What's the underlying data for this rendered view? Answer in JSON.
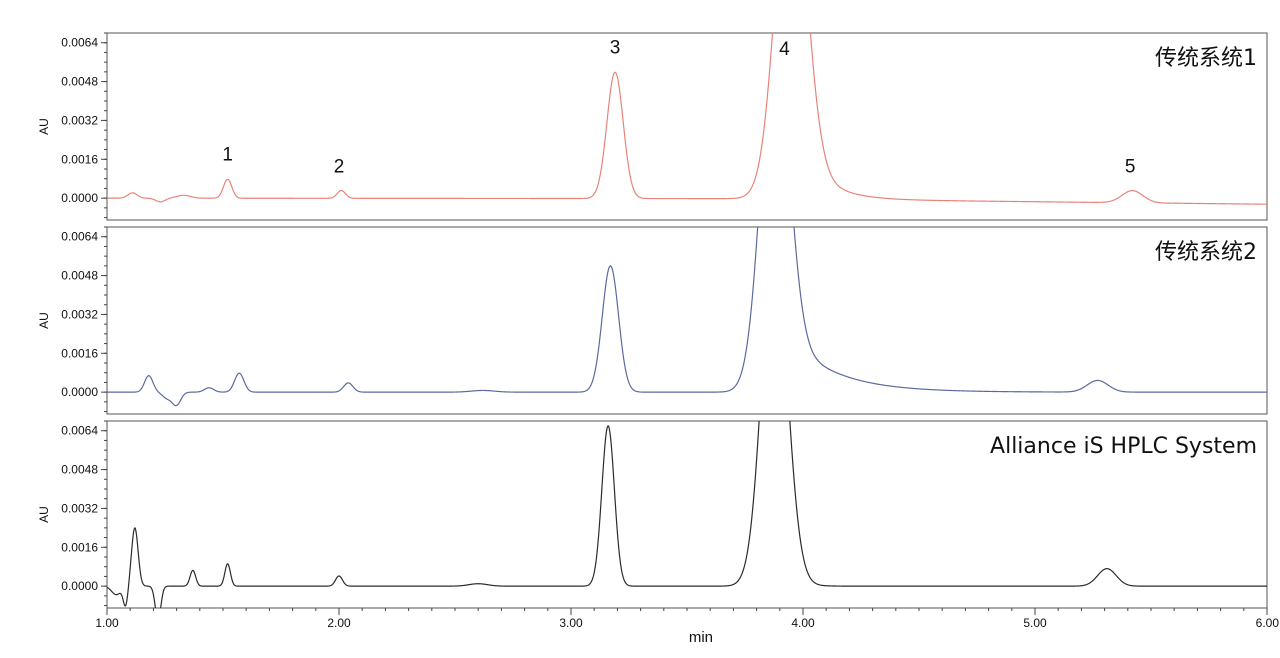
{
  "chart_data": {
    "type": "line",
    "xlabel": "min",
    "xlim": [
      1.0,
      6.0
    ],
    "x_ticks": [
      1.0,
      2.0,
      3.0,
      4.0,
      5.0,
      6.0
    ],
    "x_tick_labels": [
      "1.00",
      "2.00",
      "3.00",
      "4.00",
      "5.00",
      "6.00"
    ],
    "ylim": [
      -0.0009,
      0.0068
    ],
    "y_ticks": [
      0.0,
      0.0016,
      0.0032,
      0.0048,
      0.0064
    ],
    "y_tick_labels": [
      "0.0000",
      "0.0016",
      "0.0032",
      "0.0048",
      "0.0064"
    ],
    "grid": false,
    "panels": [
      {
        "title": "传统系统1",
        "ylabel": "AU",
        "color": "#e8837a",
        "baseline": [
          [
            1.0,
            0.0
          ],
          [
            3.75,
            -2e-05
          ],
          [
            6.0,
            -0.00025
          ]
        ],
        "peaks": [
          {
            "center": 1.11,
            "height": 0.00022,
            "width": 0.02
          },
          {
            "center": 1.23,
            "height": -0.00015,
            "width": 0.02
          },
          {
            "center": 1.33,
            "height": 0.00012,
            "width": 0.03
          },
          {
            "center": 1.52,
            "height": 0.00078,
            "width": 0.018
          },
          {
            "center": 2.01,
            "height": 0.00032,
            "width": 0.018
          },
          {
            "center": 3.19,
            "height": 0.0052,
            "width": 0.035
          },
          {
            "center": 3.95,
            "height": 0.015,
            "width": 0.065,
            "tail": 0.11
          },
          {
            "center": 5.42,
            "height": 0.0005,
            "width": 0.045
          }
        ],
        "peak_labels": [
          {
            "text": "1",
            "x": 1.52,
            "y": 0.00155
          },
          {
            "text": "2",
            "x": 2.0,
            "y": 0.00105
          },
          {
            "text": "3",
            "x": 3.19,
            "y": 0.00595
          },
          {
            "text": "4",
            "x": 3.92,
            "y": 0.0059
          },
          {
            "text": "5",
            "x": 5.41,
            "y": 0.00105
          }
        ]
      },
      {
        "title": "传统系统2",
        "ylabel": "AU",
        "color": "#5a6aa0",
        "baseline": [
          [
            1.0,
            0.0
          ],
          [
            6.0,
            0.0
          ]
        ],
        "peaks": [
          {
            "center": 1.18,
            "height": 0.00068,
            "width": 0.018
          },
          {
            "center": 1.26,
            "height": -0.00025,
            "width": 0.02
          },
          {
            "center": 1.3,
            "height": -0.00052,
            "width": 0.018
          },
          {
            "center": 1.44,
            "height": 0.00018,
            "width": 0.02
          },
          {
            "center": 1.57,
            "height": 0.00078,
            "width": 0.02
          },
          {
            "center": 2.04,
            "height": 0.00038,
            "width": 0.02
          },
          {
            "center": 2.62,
            "height": 7e-05,
            "width": 0.05
          },
          {
            "center": 3.17,
            "height": 0.0052,
            "width": 0.035
          },
          {
            "center": 3.88,
            "height": 0.015,
            "width": 0.06,
            "tail": 0.2
          },
          {
            "center": 5.27,
            "height": 0.00048,
            "width": 0.045
          }
        ],
        "peak_labels": []
      },
      {
        "title": "Alliance iS HPLC System",
        "ylabel": "AU",
        "color": "#2b2b2b",
        "baseline": [
          [
            1.0,
            0.0
          ],
          [
            6.0,
            0.0
          ]
        ],
        "peaks": [
          {
            "center": 1.04,
            "height": -0.00035,
            "width": 0.02
          },
          {
            "center": 1.08,
            "height": -0.0008,
            "width": 0.01
          },
          {
            "center": 1.12,
            "height": 0.0024,
            "width": 0.014
          },
          {
            "center": 1.22,
            "height": -0.0014,
            "width": 0.012
          },
          {
            "center": 1.37,
            "height": 0.00065,
            "width": 0.012
          },
          {
            "center": 1.52,
            "height": 0.00092,
            "width": 0.012
          },
          {
            "center": 2.0,
            "height": 0.00042,
            "width": 0.015
          },
          {
            "center": 2.6,
            "height": 0.0001,
            "width": 0.04
          },
          {
            "center": 3.16,
            "height": 0.0066,
            "width": 0.027
          },
          {
            "center": 3.88,
            "height": 0.015,
            "width": 0.055,
            "tail": 0.04
          },
          {
            "center": 5.31,
            "height": 0.00072,
            "width": 0.04
          }
        ],
        "peak_labels": []
      }
    ]
  }
}
